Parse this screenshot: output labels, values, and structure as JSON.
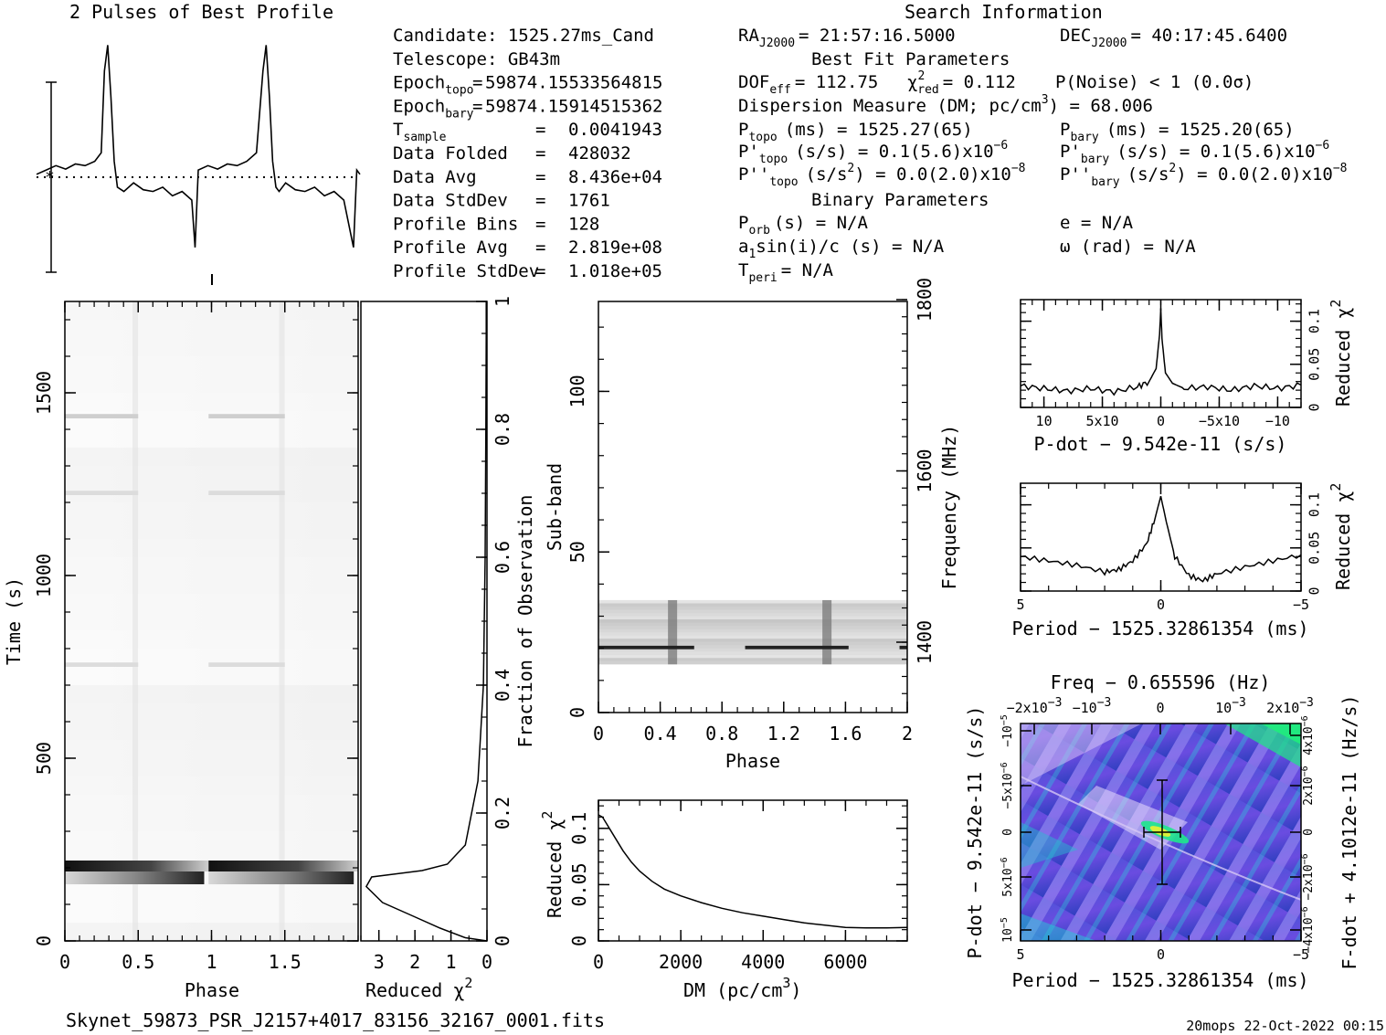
{
  "header": {
    "profile_title": "2 Pulses of Best Profile",
    "search_title": "Search Information",
    "best_fit_title": "Best Fit Parameters",
    "binary_title": "Binary Parameters"
  },
  "info_left": [
    {
      "label": "Candidate:  1525.27ms_Cand",
      "sub": "",
      "eq": "",
      "value": ""
    },
    {
      "label": "Telescope:  GB43m",
      "sub": "",
      "eq": "",
      "value": ""
    },
    {
      "label": "Epoch",
      "sub": "topo",
      "eq": "=",
      "value": "59874.15533564815"
    },
    {
      "label": "Epoch",
      "sub": "bary",
      "eq": "=",
      "value": "59874.15914515362"
    },
    {
      "label": "T",
      "sub": "sample",
      "eq": "=",
      "value": "0.0041943"
    },
    {
      "label": "Data Folded",
      "sub": "",
      "eq": "=",
      "value": "428032"
    },
    {
      "label": "Data Avg",
      "sub": "",
      "eq": "=",
      "value": "8.436e+04"
    },
    {
      "label": "Data StdDev",
      "sub": "",
      "eq": "=",
      "value": "1761"
    },
    {
      "label": "Profile Bins",
      "sub": "",
      "eq": "=",
      "value": "128"
    },
    {
      "label": "Profile Avg",
      "sub": "",
      "eq": "=",
      "value": "2.819e+08"
    },
    {
      "label": "Profile StdDev",
      "sub": "",
      "eq": "=",
      "value": "1.018e+05"
    }
  ],
  "search_info": {
    "ra": {
      "label": "RA",
      "sub": "J2000",
      "value": "= 21:57:16.5000"
    },
    "dec": {
      "label": "DEC",
      "sub": "J2000",
      "value": "= 40:17:45.6400"
    },
    "dof": {
      "label": "DOF",
      "sub": "eff",
      "value": "= 112.75"
    },
    "chi": {
      "label": "χ",
      "sup": "2",
      "sub": "red",
      "value": "= 0.112"
    },
    "pnoise": "P(Noise) < 1   (0.0σ)",
    "dm_label": "Dispersion Measure (DM; pc/cm",
    "dm_sup": "3",
    "dm_value": ") = 68.006",
    "p_topo": {
      "label": "P",
      "sub": "topo",
      "value": "(ms) =  1525.27(65)"
    },
    "p_bary": {
      "label": "P",
      "sub": "bary",
      "value": "(ms) =  1525.20(65)"
    },
    "pd_topo": {
      "label": "P'",
      "sub": "topo",
      "value": "(s/s) =  0.1(5.6)x10",
      "exp": "−6"
    },
    "pd_bary": {
      "label": "P'",
      "sub": "bary",
      "value": "(s/s) =  0.1(5.6)x10",
      "exp": "−6"
    },
    "pdd_topo": {
      "label": "P''",
      "sub": "topo",
      "value": "(s/s",
      "sup": "2",
      "value2": ") = 0.0(2.0)x10",
      "exp": "−8"
    },
    "pdd_bary": {
      "label": "P''",
      "sub": "bary",
      "value": "(s/s",
      "sup": "2",
      "value2": ") = 0.0(2.0)x10",
      "exp": "−8"
    },
    "porb": {
      "label": "P",
      "sub": "orb",
      "value": "(s) = N/A"
    },
    "a1": {
      "label": "a",
      "sub": "1",
      "value": "sin(i)/c (s) = N/A"
    },
    "tperi": {
      "label": "T",
      "sub": "peri",
      "value": "= N/A"
    },
    "ecc": "e = N/A",
    "omega": "ω (rad) = N/A"
  },
  "footer": {
    "filename": "Skynet_59873_PSR_J2157+4017_83156_32167_0001.fits",
    "stamp": "20mops 22-Oct-2022 00:15"
  },
  "chart_data": [
    {
      "type": "line",
      "name": "profile",
      "title": "2 Pulses of Best Profile",
      "x": [
        0,
        0.06,
        0.12,
        0.18,
        0.24,
        0.3,
        0.36,
        0.4,
        0.42,
        0.44,
        0.46,
        0.48,
        0.5,
        0.54,
        0.6,
        0.66,
        0.72,
        0.78,
        0.84,
        0.9,
        0.96,
        0.98,
        1.0,
        1.06,
        1.12,
        1.18,
        1.24,
        1.3,
        1.36,
        1.4,
        1.42,
        1.44,
        1.46,
        1.48,
        1.5,
        1.54,
        1.6,
        1.66,
        1.72,
        1.78,
        1.84,
        1.9,
        1.96,
        1.98,
        2.0
      ],
      "y": [
        0.0,
        0.05,
        0.1,
        0.06,
        0.12,
        0.1,
        0.15,
        0.25,
        1.2,
        1.5,
        0.9,
        0.15,
        -0.15,
        -0.2,
        -0.1,
        -0.18,
        -0.2,
        -0.15,
        -0.25,
        -0.2,
        -0.3,
        -0.85,
        0.05,
        0.1,
        0.06,
        0.12,
        0.1,
        0.15,
        0.25,
        1.2,
        1.5,
        0.9,
        0.15,
        -0.15,
        -0.2,
        -0.1,
        -0.18,
        -0.2,
        -0.15,
        -0.25,
        -0.2,
        -0.3,
        -0.85,
        0.05,
        0.0
      ]
    },
    {
      "type": "heatmap",
      "name": "time-phase",
      "xlabel": "Phase",
      "ylabel": "Time (s)",
      "xticks": [
        "0",
        "0.5",
        "1",
        "1.5"
      ],
      "xtick_values": [
        0,
        0.5,
        1,
        1.5
      ],
      "yticks": [
        "0",
        "500",
        "1000",
        "1500"
      ],
      "ytick_values": [
        0,
        500,
        1000,
        1500
      ],
      "xlim": [
        0,
        2
      ],
      "ylim": [
        0,
        1750
      ],
      "dark_bands_time_s": [
        [
          190,
          220
        ],
        [
          155,
          190
        ]
      ],
      "faint_bands_time_s": [
        1430,
        1220,
        750
      ]
    },
    {
      "type": "line",
      "name": "reduced-chi2-vs-time",
      "xlabel": "Reduced χ",
      "xlabel_sup": "2",
      "xticks": [
        "3",
        "2",
        "1",
        "0"
      ],
      "xtick_values": [
        3,
        2,
        1,
        0
      ],
      "ylabel": "Fraction of Observation",
      "yticks": [
        "0",
        "0.2",
        "0.4",
        "0.6",
        "0.8",
        "1"
      ],
      "ytick_values": [
        0,
        0.2,
        0.4,
        0.6,
        0.8,
        1
      ],
      "xlim": [
        3.5,
        0
      ],
      "ylim": [
        0,
        1
      ],
      "x": [
        0.0,
        0.6,
        1.3,
        2.1,
        2.9,
        3.35,
        3.2,
        2.5,
        1.8,
        1.1,
        0.6,
        0.25,
        0.1,
        0.05,
        0.03,
        0.02,
        0.02
      ],
      "y": [
        0.0,
        0.005,
        0.02,
        0.04,
        0.06,
        0.085,
        0.1,
        0.105,
        0.11,
        0.12,
        0.15,
        0.25,
        0.4,
        0.6,
        0.8,
        0.95,
        1.0
      ]
    },
    {
      "type": "heatmap",
      "name": "subband-phase",
      "xlabel": "Phase",
      "ylabel": "Sub-band",
      "y2label": "Frequency (MHz)",
      "xticks": [
        "0",
        "0.4",
        "0.8",
        "1.2",
        "1.6",
        "2"
      ],
      "xtick_values": [
        0,
        0.4,
        0.8,
        1.2,
        1.6,
        2
      ],
      "yticks": [
        "0",
        "50",
        "100"
      ],
      "ytick_values": [
        0,
        50,
        100
      ],
      "y2ticks": [
        "1400",
        "1600",
        "1800"
      ],
      "xlim": [
        0,
        2
      ],
      "ylim": [
        0,
        128
      ],
      "data_band_subbands": [
        15,
        35
      ],
      "dark_line_subband": 20,
      "pulse_phases": [
        0.48,
        1.48
      ]
    },
    {
      "type": "line",
      "name": "reduced-chi2-vs-dm",
      "xlabel": "DM (pc/cm",
      "xlabel_sup": "3",
      "xlabel_end": ")",
      "ylabel": "Reduced χ",
      "ylabel_sup": "2",
      "xticks": [
        "0",
        "2000",
        "4000",
        "6000"
      ],
      "xtick_values": [
        0,
        2000,
        4000,
        6000
      ],
      "yticks": [
        "0",
        "0.05",
        "0.1"
      ],
      "ytick_values": [
        0,
        0.05,
        0.1
      ],
      "xlim": [
        0,
        7500
      ],
      "ylim": [
        0,
        0.125
      ],
      "x": [
        0,
        100,
        200,
        400,
        600,
        800,
        1000,
        1300,
        1600,
        2000,
        2500,
        3000,
        3500,
        4000,
        4500,
        5000,
        5500,
        6000,
        6500,
        7000,
        7500
      ],
      "y": [
        0.112,
        0.11,
        0.104,
        0.092,
        0.08,
        0.07,
        0.062,
        0.053,
        0.046,
        0.04,
        0.034,
        0.029,
        0.025,
        0.022,
        0.019,
        0.016,
        0.014,
        0.012,
        0.0115,
        0.0115,
        0.012
      ]
    },
    {
      "type": "line",
      "name": "reduced-chi2-vs-pdot",
      "xlabel": "P-dot − 9.542e-11 (s/s)",
      "ylabel": "Reduced χ",
      "ylabel_sup": "2",
      "xticks": [
        "10",
        "5x10",
        "0",
        "−5x10",
        "−10"
      ],
      "xtick_exp": "−5",
      "xtick_exp_small": "−6",
      "xtick_values": [
        1e-05,
        5e-06,
        0,
        -5e-06,
        -1e-05
      ],
      "yticks": [
        "0",
        "0.05",
        "0.1"
      ],
      "ytick_values": [
        0,
        0.05,
        0.1
      ],
      "xlim": [
        1.2e-05,
        -1.2e-05
      ],
      "ylim": [
        0,
        0.125
      ],
      "x": [
        1.2e-05,
        1e-05,
        8e-06,
        6e-06,
        4e-06,
        2e-06,
        1e-06,
        4e-07,
        1e-07,
        0,
        -1e-07,
        -4e-07,
        -1e-06,
        -2e-06,
        -4e-06,
        -6e-06,
        -8e-06,
        -1e-05,
        -1.2e-05
      ],
      "y": [
        0.025,
        0.022,
        0.019,
        0.022,
        0.018,
        0.024,
        0.03,
        0.045,
        0.085,
        0.115,
        0.08,
        0.04,
        0.028,
        0.022,
        0.024,
        0.02,
        0.025,
        0.022,
        0.026
      ]
    },
    {
      "type": "line",
      "name": "reduced-chi2-vs-period",
      "xlabel": "Period − 1525.32861354 (ms)",
      "ylabel": "Reduced χ",
      "ylabel_sup": "2",
      "xticks": [
        "5",
        "0",
        "−5"
      ],
      "xtick_values": [
        5,
        0,
        -5
      ],
      "yticks": [
        "0",
        "0.05",
        "0.1"
      ],
      "ytick_values": [
        0,
        0.05,
        0.1
      ],
      "xlim": [
        5,
        -5
      ],
      "ylim": [
        0,
        0.125
      ],
      "x": [
        5,
        4,
        3,
        2,
        1.5,
        1,
        0.5,
        0.2,
        0,
        -0.2,
        -0.5,
        -1,
        -1.5,
        -2,
        -3,
        -4,
        -5
      ],
      "y": [
        0.04,
        0.035,
        0.03,
        0.022,
        0.025,
        0.035,
        0.055,
        0.085,
        0.11,
        0.08,
        0.04,
        0.018,
        0.012,
        0.02,
        0.028,
        0.035,
        0.042
      ]
    },
    {
      "type": "heatmap",
      "name": "period-pdot",
      "title": "Freq − 0.655596 (Hz)",
      "xlabel": "Period − 1525.32861354 (ms)",
      "ylabel": "P-dot − 9.542e-11 (s/s)",
      "y2label": "F-dot + 4.1012e-11 (Hz/s)",
      "xticks": [
        "5",
        "0",
        "−5"
      ],
      "xtick_values": [
        5,
        0,
        -5
      ],
      "x2ticks": [
        "−2x10",
        "−10",
        "0",
        "10",
        "2x10"
      ],
      "x2tick_exp": "−3",
      "yticks": [
        "10",
        "5x10",
        "0",
        "−5x10",
        "−10"
      ],
      "ytick_exp": "−5",
      "ytick_exp_small": "−6",
      "y2ticks": [
        "−4x10",
        "−2x10",
        "0",
        "2x10",
        "4x10"
      ],
      "y2tick_exp": "−6",
      "xlim": [
        5,
        -5
      ],
      "best_period": 0,
      "best_pdot": 0
    }
  ]
}
